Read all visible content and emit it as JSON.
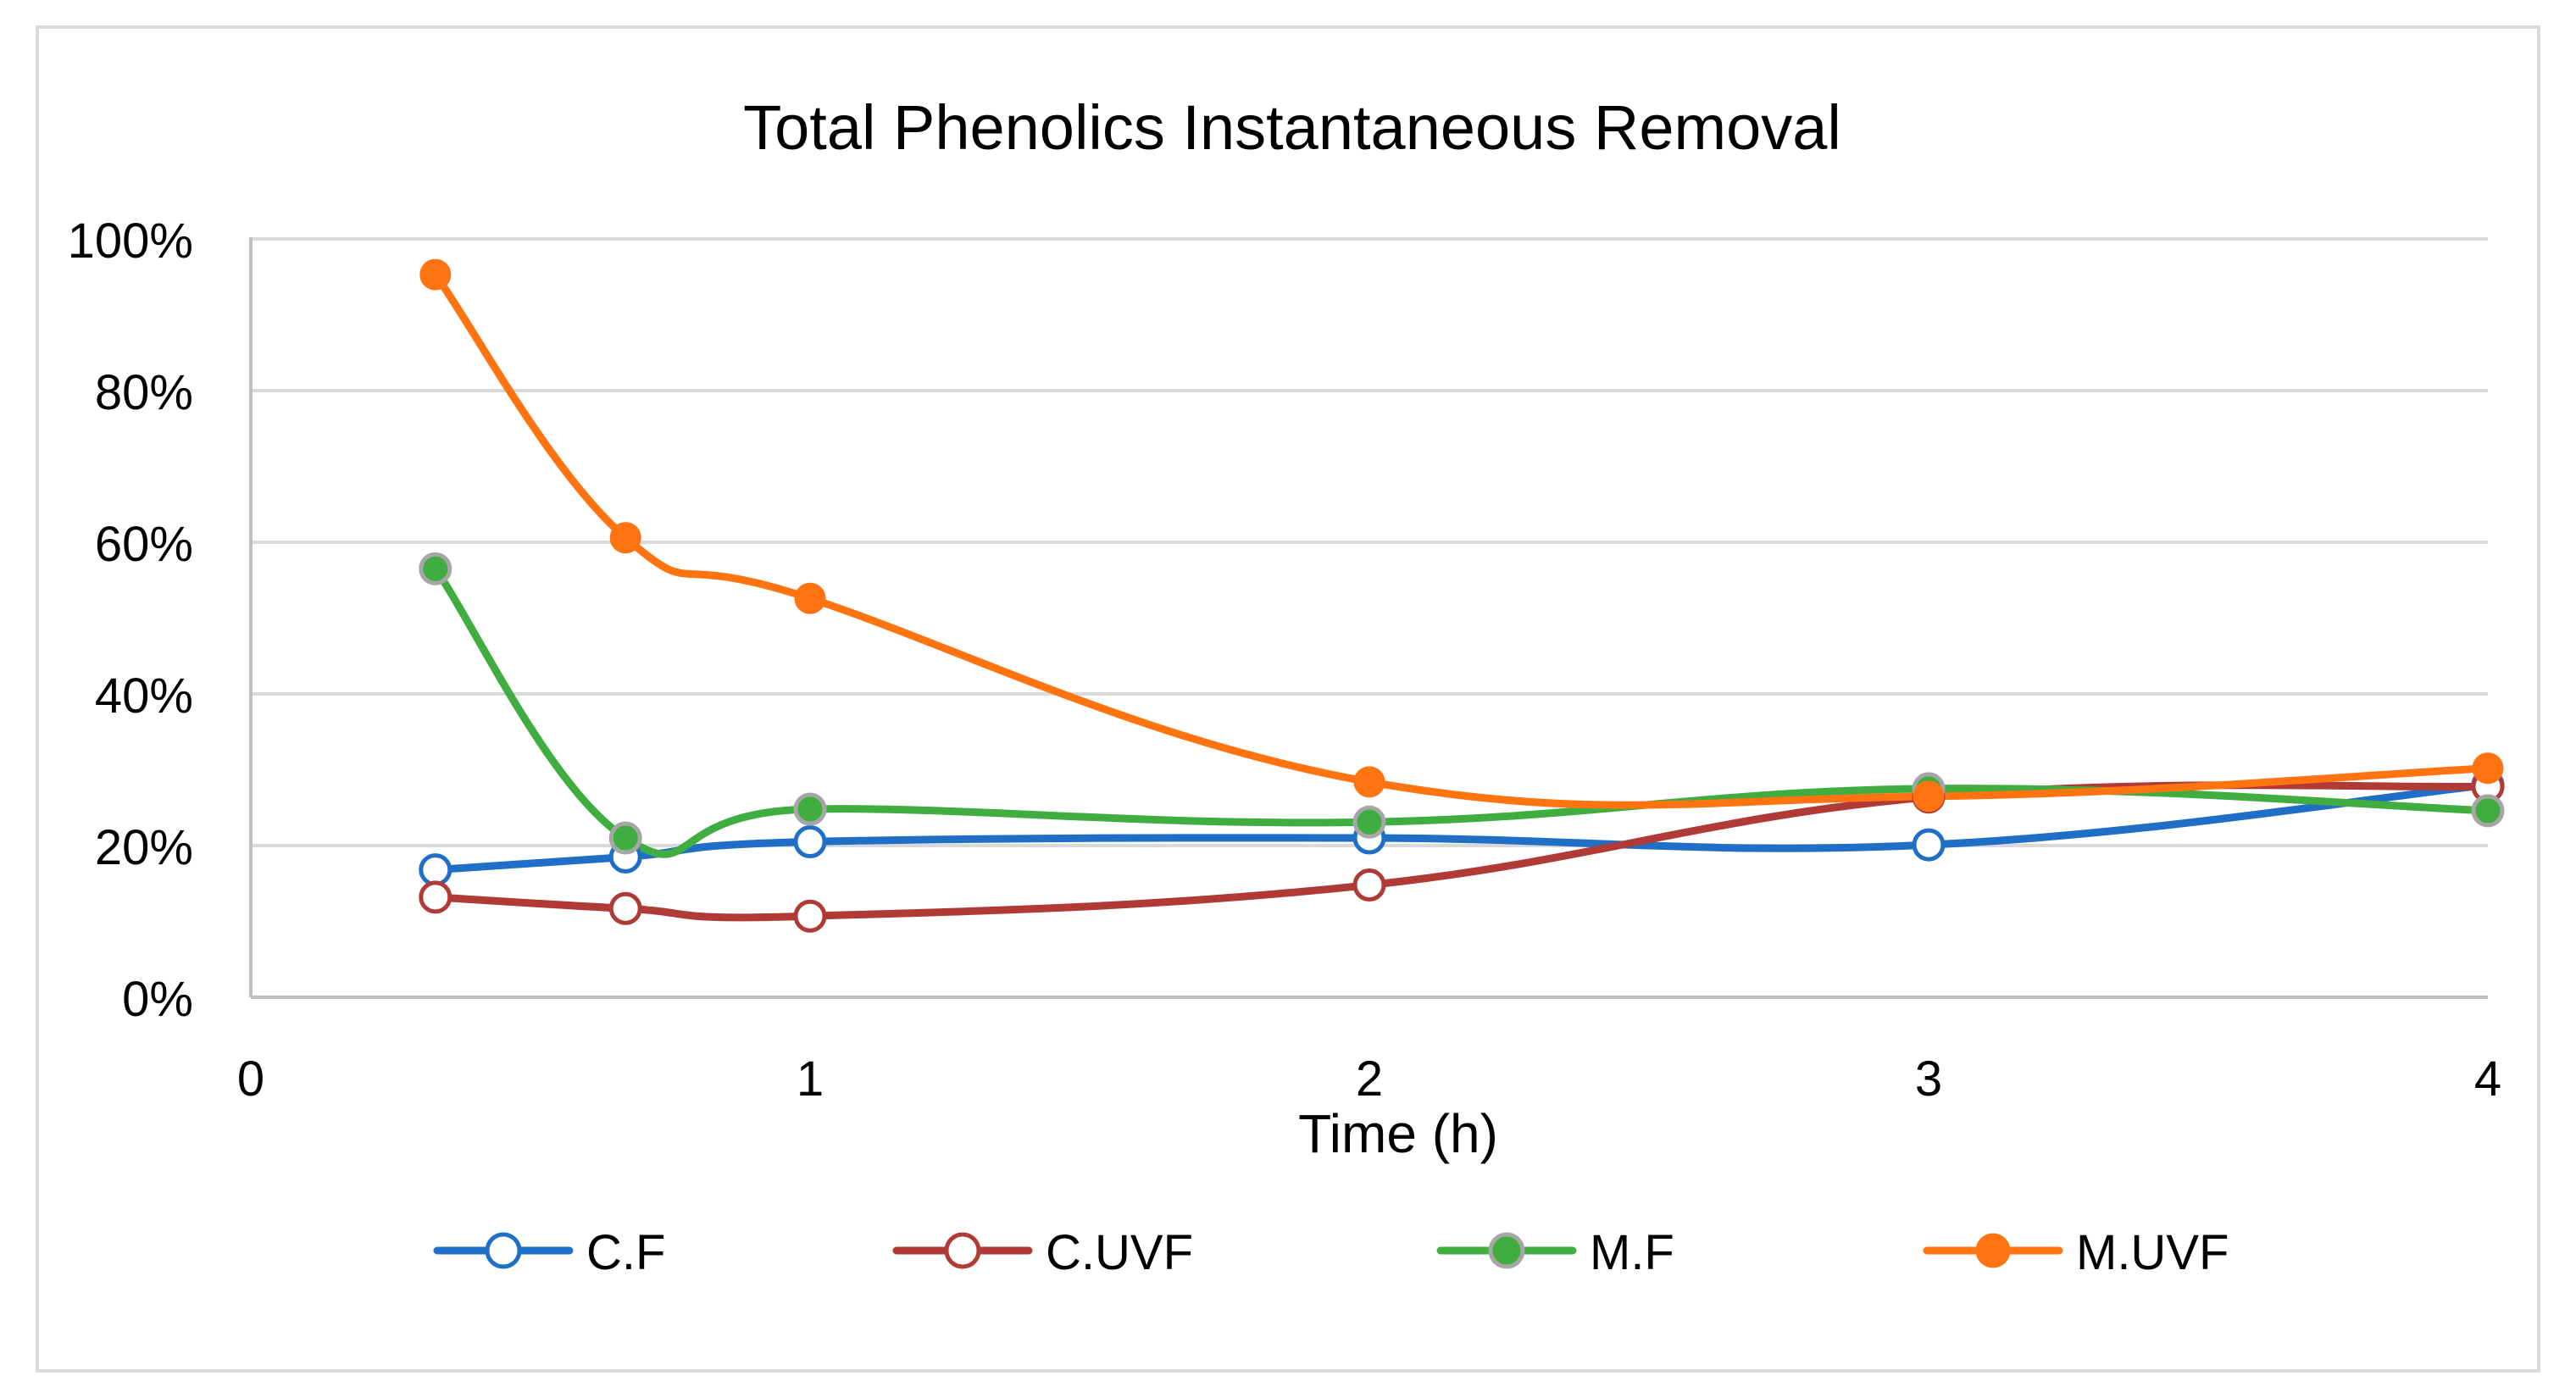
{
  "chart_data": {
    "type": "line",
    "title": "Total Phenolics Instantaneous Removal",
    "xlabel": "Time (h)",
    "ylabel": "",
    "xlim": [
      0,
      4
    ],
    "ylim": [
      0,
      100
    ],
    "x_ticks": [
      "0",
      "1",
      "2",
      "3",
      "4"
    ],
    "y_ticks": [
      "0%",
      "20%",
      "40%",
      "60%",
      "80%",
      "100%"
    ],
    "grid": true,
    "legend_position": "bottom",
    "x": [
      0.33,
      0.67,
      1,
      2,
      3,
      4
    ],
    "series": [
      {
        "name": "C.F",
        "color": "#1f6fc6",
        "marker": "open-circle",
        "values": [
          16.8,
          18.5,
          20.5,
          21.0,
          20.1,
          28.0
        ]
      },
      {
        "name": "C.UVF",
        "color": "#b03a36",
        "marker": "open-circle",
        "values": [
          13.2,
          11.7,
          10.7,
          14.8,
          26.4,
          27.8
        ]
      },
      {
        "name": "M.F",
        "color": "#3fad3f",
        "marker": "filled-circle-gray-edge",
        "values": [
          56.5,
          21.0,
          24.8,
          23.1,
          27.5,
          24.6
        ]
      },
      {
        "name": "M.UVF",
        "color": "#ff7410",
        "marker": "filled-circle",
        "values": [
          95.3,
          60.6,
          52.6,
          28.4,
          26.5,
          30.2
        ]
      }
    ]
  }
}
